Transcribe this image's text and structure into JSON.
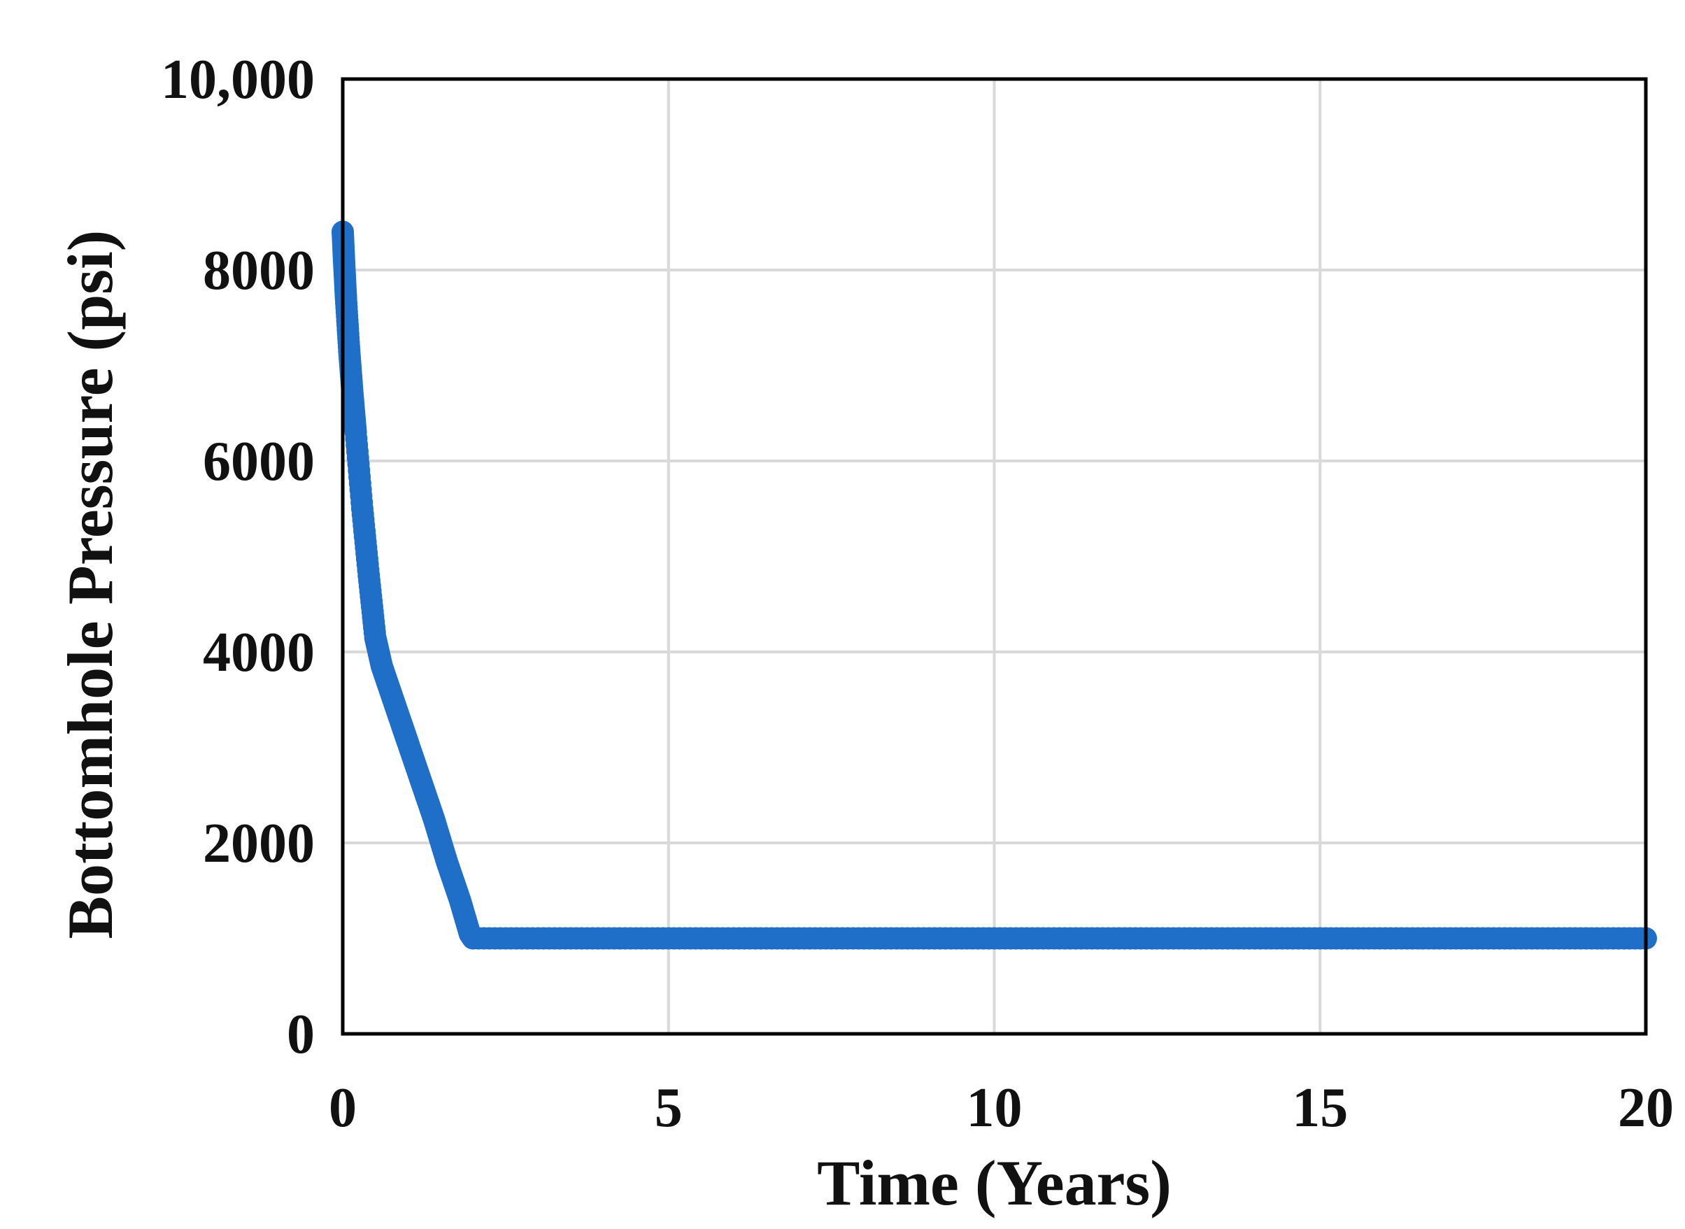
{
  "chart_data": {
    "type": "scatter",
    "title": "",
    "xlabel": "Time (Years)",
    "ylabel": "Bottomhole Pressure (psi)",
    "xlim": [
      0,
      20
    ],
    "ylim": [
      0,
      10000
    ],
    "x_ticks": [
      0,
      5,
      10,
      15,
      20
    ],
    "x_tick_labels": [
      "0",
      "5",
      "10",
      "15",
      "20"
    ],
    "y_ticks": [
      0,
      2000,
      4000,
      6000,
      8000,
      10000
    ],
    "y_tick_labels": [
      "0",
      "2000",
      "4000",
      "6000",
      "8000",
      "10,000"
    ],
    "grid": true,
    "legend": "none",
    "series_color": "#1f6fc8",
    "series": [
      {
        "x": [
          0,
          0.02,
          0.05,
          0.1,
          0.15,
          0.2,
          0.3,
          0.4,
          0.5,
          0.6,
          0.75,
          0.9,
          1.0,
          1.2,
          1.4,
          1.6,
          1.8,
          1.95,
          2.0,
          3,
          4,
          5,
          6,
          7,
          8,
          9,
          10,
          11,
          12,
          13,
          14,
          15,
          16,
          17,
          18,
          19,
          20
        ],
        "y": [
          8400,
          8100,
          7700,
          7150,
          6700,
          6300,
          5500,
          4800,
          4150,
          3850,
          3550,
          3250,
          3050,
          2650,
          2250,
          1800,
          1400,
          1050,
          1000,
          1000,
          1000,
          1000,
          1000,
          1000,
          1000,
          1000,
          1000,
          1000,
          1000,
          1000,
          1000,
          1000,
          1000,
          1000,
          1000,
          1000,
          1000
        ]
      }
    ]
  }
}
